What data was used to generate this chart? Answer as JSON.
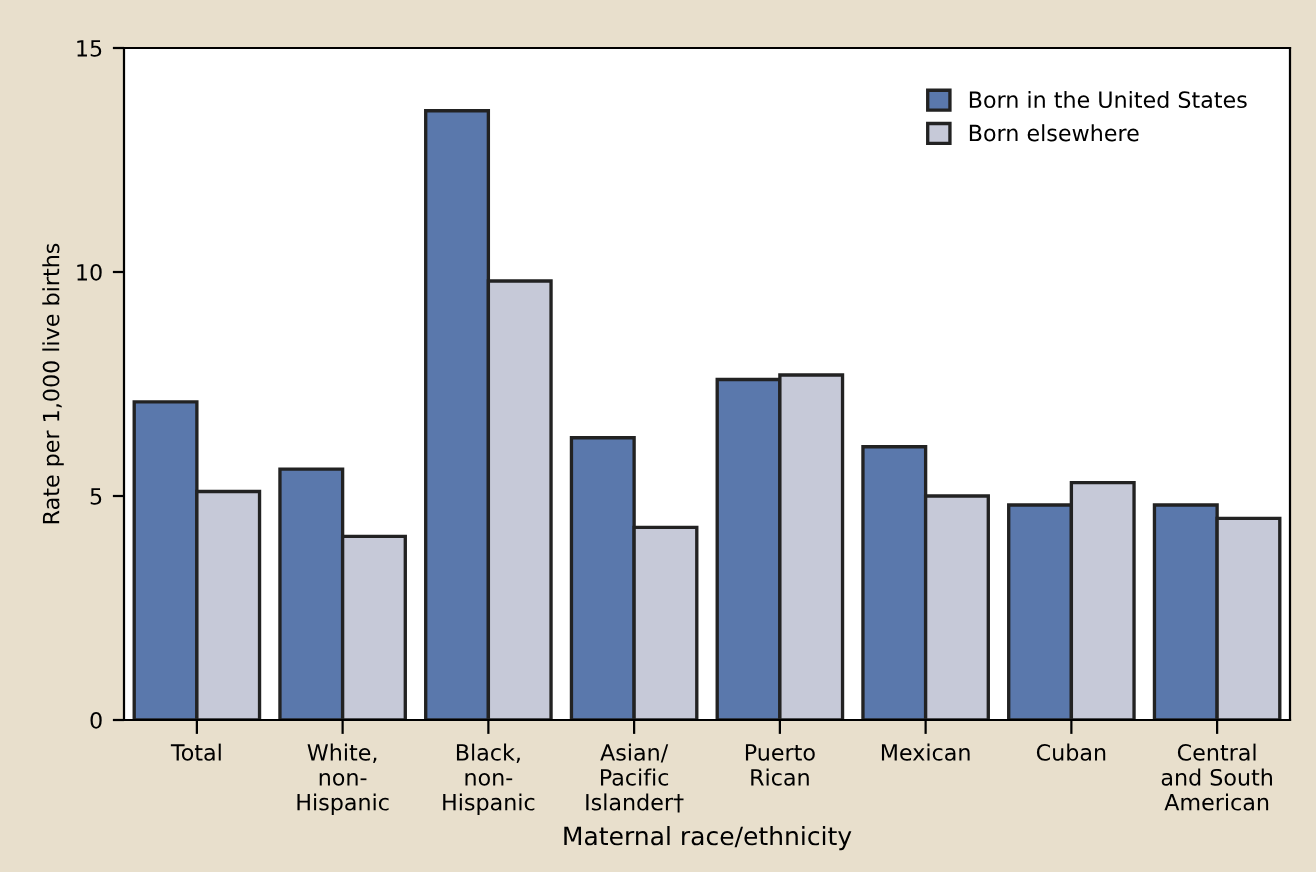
{
  "chart_data": {
    "type": "bar",
    "xlabel": "Maternal race/ethnicity",
    "ylabel": "Rate per 1,000 live births",
    "categories": [
      "Total",
      "White,\nnon-\nHispanic",
      "Black,\nnon-\nHispanic",
      "Asian/\nPacific\nIslander†",
      "Puerto\nRican",
      "Mexican",
      "Cuban",
      "Central\nand South\nAmerican"
    ],
    "series": [
      {
        "name": "Born in the United States",
        "color": "#5a78ac",
        "values": [
          7.1,
          5.6,
          13.6,
          6.3,
          7.6,
          6.1,
          4.8,
          4.8
        ]
      },
      {
        "name": "Born elsewhere",
        "color": "#c6c9d8",
        "values": [
          5.1,
          4.1,
          9.8,
          4.3,
          7.7,
          5.0,
          5.3,
          4.5
        ]
      }
    ],
    "ylim": [
      0,
      15
    ],
    "yticks": [
      0,
      5,
      10,
      15
    ],
    "grid": false,
    "legend": "top right"
  }
}
